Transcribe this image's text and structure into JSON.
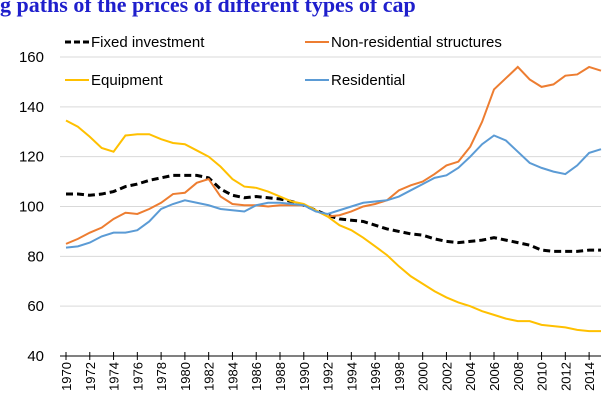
{
  "chart_data": {
    "type": "line",
    "title": "g paths of the prices of different types of cap",
    "x": [
      1970,
      1971,
      1972,
      1973,
      1974,
      1975,
      1976,
      1977,
      1978,
      1979,
      1980,
      1981,
      1982,
      1983,
      1984,
      1985,
      1986,
      1987,
      1988,
      1989,
      1990,
      1991,
      1992,
      1993,
      1994,
      1995,
      1996,
      1997,
      1998,
      1999,
      2000,
      2001,
      2002,
      2003,
      2004,
      2005,
      2006,
      2007,
      2008,
      2009,
      2010,
      2011,
      2012,
      2013,
      2014,
      2015
    ],
    "xlim": [
      1970,
      2015
    ],
    "xticks": [
      1970,
      1972,
      1974,
      1976,
      1978,
      1980,
      1982,
      1984,
      1986,
      1988,
      1990,
      1992,
      1994,
      1996,
      1998,
      2000,
      2002,
      2004,
      2006,
      2008,
      2010,
      2012,
      2014
    ],
    "ylim": [
      40,
      160
    ],
    "yticks": [
      40,
      60,
      80,
      100,
      120,
      140,
      160
    ],
    "grid": true,
    "series": [
      {
        "name": "Fixed investment",
        "color": "#000000",
        "style": "dashed",
        "values": [
          105,
          105,
          104.5,
          105,
          106,
          108,
          109,
          110.5,
          111.5,
          112.5,
          112.5,
          112.5,
          111.5,
          107,
          104.5,
          103.5,
          104,
          103.5,
          103,
          102,
          100.5,
          98.5,
          96.5,
          95,
          94.5,
          94,
          92.5,
          91,
          90,
          89,
          88.5,
          87,
          86,
          85.5,
          86,
          86.5,
          87.5,
          86.5,
          85.5,
          84.5,
          82.5,
          82,
          82,
          82,
          82.5,
          82.5
        ]
      },
      {
        "name": "Non-residential structures",
        "color": "#ed7d31",
        "style": "solid",
        "values": [
          85,
          87,
          89.5,
          91.5,
          95,
          97.5,
          97,
          99,
          101.5,
          105,
          105.5,
          109.5,
          111,
          104,
          101,
          100.5,
          100.5,
          100,
          100.5,
          100.5,
          100.5,
          98.5,
          96,
          96.5,
          98,
          100,
          101,
          102.5,
          106.5,
          108.5,
          110,
          113,
          116.5,
          118,
          124,
          134,
          147,
          151.5,
          156,
          151,
          148,
          149,
          152.5,
          153,
          156,
          154.5
        ]
      },
      {
        "name": "Equipment",
        "color": "#ffc000",
        "style": "solid",
        "values": [
          134.5,
          132,
          128,
          123.5,
          122,
          128.5,
          129,
          129,
          127,
          125.5,
          125,
          122.5,
          120,
          116,
          111,
          108,
          107.5,
          106,
          104,
          102,
          101,
          98.5,
          96,
          92.5,
          90.5,
          87.5,
          84,
          80.5,
          76,
          72,
          69,
          66,
          63.5,
          61.5,
          60,
          58,
          56.5,
          55,
          54,
          54,
          52.5,
          52,
          51.5,
          50.5,
          50,
          50
        ]
      },
      {
        "name": "Residential",
        "color": "#5b9bd5",
        "style": "solid",
        "values": [
          83.5,
          84,
          85.5,
          88,
          89.5,
          89.5,
          90.5,
          94,
          99,
          101,
          102.5,
          101.5,
          100.5,
          99,
          98.5,
          98,
          100.5,
          101.5,
          101.5,
          101,
          100.5,
          98,
          97,
          98.5,
          100,
          101.5,
          102,
          102.5,
          104,
          106.5,
          109,
          111.5,
          112.5,
          115.5,
          120,
          125,
          128.5,
          126.5,
          122,
          117.5,
          115.5,
          114,
          113,
          116.5,
          121.5,
          123
        ]
      }
    ]
  }
}
